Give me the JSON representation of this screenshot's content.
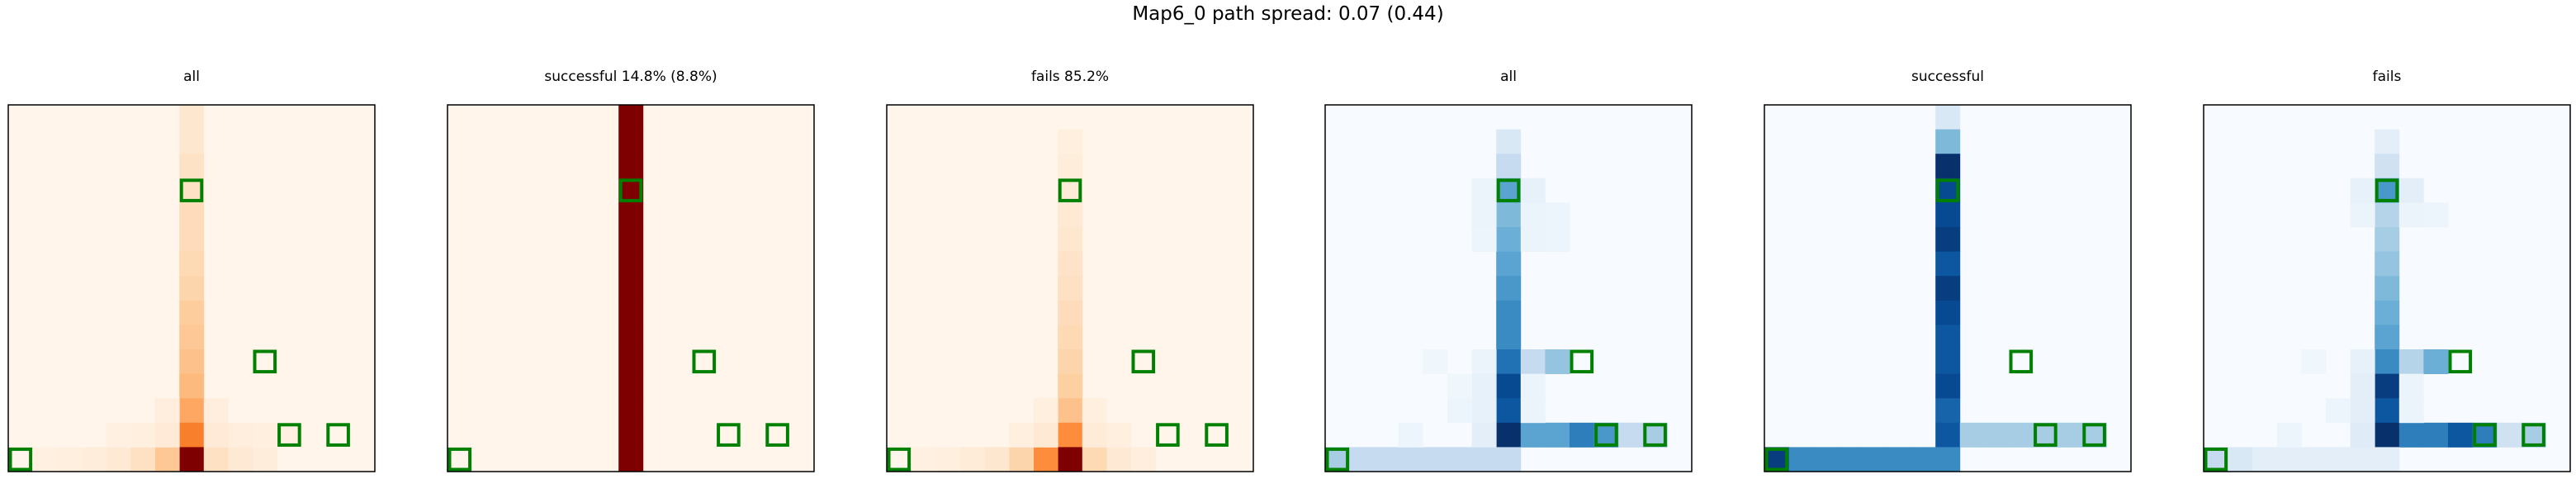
{
  "figure": {
    "title": "Map6_0 path spread: 0.07 (0.44)"
  },
  "chart_data": [
    {
      "type": "heatmap",
      "title": "all",
      "colormap": "Oranges",
      "grid_size": [
        15,
        15
      ],
      "cells": [
        {
          "col": 7,
          "row": 0,
          "value": 0.12
        },
        {
          "col": 7,
          "row": 1,
          "value": 0.12
        },
        {
          "col": 7,
          "row": 2,
          "value": 0.15
        },
        {
          "col": 7,
          "row": 3,
          "value": 0.15
        },
        {
          "col": 7,
          "row": 4,
          "value": 0.18
        },
        {
          "col": 7,
          "row": 5,
          "value": 0.18
        },
        {
          "col": 7,
          "row": 6,
          "value": 0.2
        },
        {
          "col": 7,
          "row": 7,
          "value": 0.22
        },
        {
          "col": 7,
          "row": 8,
          "value": 0.26
        },
        {
          "col": 7,
          "row": 9,
          "value": 0.28
        },
        {
          "col": 7,
          "row": 10,
          "value": 0.3
        },
        {
          "col": 7,
          "row": 11,
          "value": 0.33
        },
        {
          "col": 7,
          "row": 12,
          "value": 0.4
        },
        {
          "col": 7,
          "row": 13,
          "value": 0.55
        },
        {
          "col": 7,
          "row": 14,
          "value": 1.0
        },
        {
          "col": 6,
          "row": 14,
          "value": 0.28
        },
        {
          "col": 5,
          "row": 14,
          "value": 0.16
        },
        {
          "col": 4,
          "row": 14,
          "value": 0.1
        },
        {
          "col": 3,
          "row": 14,
          "value": 0.07
        },
        {
          "col": 2,
          "row": 14,
          "value": 0.05
        },
        {
          "col": 1,
          "row": 14,
          "value": 0.04
        },
        {
          "col": 8,
          "row": 14,
          "value": 0.16
        },
        {
          "col": 9,
          "row": 14,
          "value": 0.1
        },
        {
          "col": 10,
          "row": 14,
          "value": 0.07
        },
        {
          "col": 6,
          "row": 13,
          "value": 0.09
        },
        {
          "col": 8,
          "row": 13,
          "value": 0.09
        },
        {
          "col": 9,
          "row": 13,
          "value": 0.06
        },
        {
          "col": 6,
          "row": 12,
          "value": 0.06
        },
        {
          "col": 8,
          "row": 12,
          "value": 0.06
        },
        {
          "col": 5,
          "row": 13,
          "value": 0.05
        },
        {
          "col": 10,
          "row": 13,
          "value": 0.05
        },
        {
          "col": 11,
          "row": 13,
          "value": 0.04
        },
        {
          "col": 4,
          "row": 13,
          "value": 0.04
        }
      ],
      "markers": [
        {
          "col": 7,
          "row": 3
        },
        {
          "col": 10,
          "row": 10
        },
        {
          "col": 11,
          "row": 13
        },
        {
          "col": 13,
          "row": 13
        },
        {
          "col": 0,
          "row": 14
        }
      ]
    },
    {
      "type": "heatmap",
      "title": "successful 14.8% (8.8%)",
      "colormap": "Oranges",
      "grid_size": [
        15,
        15
      ],
      "cells": [
        {
          "col": 7,
          "row": 0,
          "value": 1.0
        },
        {
          "col": 7,
          "row": 1,
          "value": 1.0
        },
        {
          "col": 7,
          "row": 2,
          "value": 1.0
        },
        {
          "col": 7,
          "row": 3,
          "value": 1.0
        },
        {
          "col": 7,
          "row": 4,
          "value": 1.0
        },
        {
          "col": 7,
          "row": 5,
          "value": 1.0
        },
        {
          "col": 7,
          "row": 6,
          "value": 1.0
        },
        {
          "col": 7,
          "row": 7,
          "value": 1.0
        },
        {
          "col": 7,
          "row": 8,
          "value": 1.0
        },
        {
          "col": 7,
          "row": 9,
          "value": 1.0
        },
        {
          "col": 7,
          "row": 10,
          "value": 1.0
        },
        {
          "col": 7,
          "row": 11,
          "value": 1.0
        },
        {
          "col": 7,
          "row": 12,
          "value": 1.0
        },
        {
          "col": 7,
          "row": 13,
          "value": 1.0
        },
        {
          "col": 7,
          "row": 14,
          "value": 1.0
        }
      ],
      "markers": [
        {
          "col": 7,
          "row": 3
        },
        {
          "col": 10,
          "row": 10
        },
        {
          "col": 11,
          "row": 13
        },
        {
          "col": 13,
          "row": 13
        },
        {
          "col": 0,
          "row": 14
        }
      ]
    },
    {
      "type": "heatmap",
      "title": "fails 85.2%",
      "colormap": "Oranges",
      "grid_size": [
        15,
        15
      ],
      "cells": [
        {
          "col": 7,
          "row": 1,
          "value": 0.05
        },
        {
          "col": 7,
          "row": 2,
          "value": 0.07
        },
        {
          "col": 7,
          "row": 3,
          "value": 0.08
        },
        {
          "col": 7,
          "row": 4,
          "value": 0.1
        },
        {
          "col": 7,
          "row": 5,
          "value": 0.12
        },
        {
          "col": 7,
          "row": 6,
          "value": 0.14
        },
        {
          "col": 7,
          "row": 7,
          "value": 0.16
        },
        {
          "col": 7,
          "row": 8,
          "value": 0.18
        },
        {
          "col": 7,
          "row": 9,
          "value": 0.2
        },
        {
          "col": 7,
          "row": 10,
          "value": 0.22
        },
        {
          "col": 7,
          "row": 11,
          "value": 0.25
        },
        {
          "col": 7,
          "row": 12,
          "value": 0.3
        },
        {
          "col": 7,
          "row": 13,
          "value": 0.5
        },
        {
          "col": 7,
          "row": 14,
          "value": 1.0
        },
        {
          "col": 6,
          "row": 14,
          "value": 0.5
        },
        {
          "col": 5,
          "row": 14,
          "value": 0.22
        },
        {
          "col": 4,
          "row": 14,
          "value": 0.12
        },
        {
          "col": 3,
          "row": 14,
          "value": 0.08
        },
        {
          "col": 2,
          "row": 14,
          "value": 0.05
        },
        {
          "col": 1,
          "row": 14,
          "value": 0.04
        },
        {
          "col": 8,
          "row": 14,
          "value": 0.2
        },
        {
          "col": 9,
          "row": 14,
          "value": 0.1
        },
        {
          "col": 10,
          "row": 14,
          "value": 0.06
        },
        {
          "col": 6,
          "row": 13,
          "value": 0.1
        },
        {
          "col": 8,
          "row": 13,
          "value": 0.08
        },
        {
          "col": 6,
          "row": 12,
          "value": 0.05
        },
        {
          "col": 8,
          "row": 12,
          "value": 0.05
        },
        {
          "col": 5,
          "row": 13,
          "value": 0.05
        },
        {
          "col": 9,
          "row": 13,
          "value": 0.05
        }
      ],
      "markers": [
        {
          "col": 7,
          "row": 3
        },
        {
          "col": 10,
          "row": 10
        },
        {
          "col": 11,
          "row": 13
        },
        {
          "col": 13,
          "row": 13
        },
        {
          "col": 0,
          "row": 14
        }
      ]
    },
    {
      "type": "heatmap",
      "title": "all",
      "colormap": "Blues",
      "grid_size": [
        15,
        15
      ],
      "cells": [
        {
          "col": 7,
          "row": 1,
          "value": 0.15
        },
        {
          "col": 7,
          "row": 2,
          "value": 0.25
        },
        {
          "col": 7,
          "row": 3,
          "value": 0.55
        },
        {
          "col": 7,
          "row": 4,
          "value": 0.45
        },
        {
          "col": 7,
          "row": 5,
          "value": 0.5
        },
        {
          "col": 7,
          "row": 6,
          "value": 0.55
        },
        {
          "col": 7,
          "row": 7,
          "value": 0.6
        },
        {
          "col": 7,
          "row": 8,
          "value": 0.65
        },
        {
          "col": 7,
          "row": 9,
          "value": 0.65
        },
        {
          "col": 7,
          "row": 10,
          "value": 0.75
        },
        {
          "col": 7,
          "row": 11,
          "value": 0.9
        },
        {
          "col": 7,
          "row": 12,
          "value": 0.85
        },
        {
          "col": 7,
          "row": 13,
          "value": 1.0
        },
        {
          "col": 8,
          "row": 10,
          "value": 0.25
        },
        {
          "col": 9,
          "row": 10,
          "value": 0.4
        },
        {
          "col": 8,
          "row": 13,
          "value": 0.55
        },
        {
          "col": 9,
          "row": 13,
          "value": 0.55
        },
        {
          "col": 10,
          "row": 13,
          "value": 0.7
        },
        {
          "col": 11,
          "row": 13,
          "value": 0.6
        },
        {
          "col": 12,
          "row": 13,
          "value": 0.25
        },
        {
          "col": 13,
          "row": 13,
          "value": 0.35
        },
        {
          "col": 0,
          "row": 14,
          "value": 0.35
        },
        {
          "col": 1,
          "row": 14,
          "value": 0.25
        },
        {
          "col": 2,
          "row": 14,
          "value": 0.25
        },
        {
          "col": 3,
          "row": 14,
          "value": 0.25
        },
        {
          "col": 4,
          "row": 14,
          "value": 0.25
        },
        {
          "col": 5,
          "row": 14,
          "value": 0.25
        },
        {
          "col": 6,
          "row": 14,
          "value": 0.25
        },
        {
          "col": 7,
          "row": 14,
          "value": 0.25
        },
        {
          "col": 6,
          "row": 3,
          "value": 0.06
        },
        {
          "col": 8,
          "row": 3,
          "value": 0.08
        },
        {
          "col": 6,
          "row": 4,
          "value": 0.06
        },
        {
          "col": 8,
          "row": 4,
          "value": 0.06
        },
        {
          "col": 9,
          "row": 4,
          "value": 0.05
        },
        {
          "col": 6,
          "row": 5,
          "value": 0.05
        },
        {
          "col": 8,
          "row": 5,
          "value": 0.06
        },
        {
          "col": 9,
          "row": 5,
          "value": 0.05
        },
        {
          "col": 6,
          "row": 10,
          "value": 0.06
        },
        {
          "col": 6,
          "row": 11,
          "value": 0.08
        },
        {
          "col": 6,
          "row": 12,
          "value": 0.08
        },
        {
          "col": 6,
          "row": 13,
          "value": 0.1
        },
        {
          "col": 8,
          "row": 11,
          "value": 0.06
        },
        {
          "col": 8,
          "row": 12,
          "value": 0.06
        },
        {
          "col": 5,
          "row": 12,
          "value": 0.05
        },
        {
          "col": 5,
          "row": 11,
          "value": 0.04
        },
        {
          "col": 4,
          "row": 10,
          "value": 0.04
        },
        {
          "col": 3,
          "row": 13,
          "value": 0.05
        }
      ],
      "markers": [
        {
          "col": 7,
          "row": 3
        },
        {
          "col": 10,
          "row": 10
        },
        {
          "col": 11,
          "row": 13
        },
        {
          "col": 13,
          "row": 13
        },
        {
          "col": 0,
          "row": 14
        }
      ]
    },
    {
      "type": "heatmap",
      "title": "successful",
      "colormap": "Blues",
      "grid_size": [
        15,
        15
      ],
      "cells": [
        {
          "col": 7,
          "row": 0,
          "value": 0.15
        },
        {
          "col": 7,
          "row": 1,
          "value": 0.45
        },
        {
          "col": 7,
          "row": 2,
          "value": 1.0
        },
        {
          "col": 7,
          "row": 3,
          "value": 0.9
        },
        {
          "col": 7,
          "row": 4,
          "value": 0.9
        },
        {
          "col": 7,
          "row": 5,
          "value": 0.95
        },
        {
          "col": 7,
          "row": 6,
          "value": 0.85
        },
        {
          "col": 7,
          "row": 7,
          "value": 0.95
        },
        {
          "col": 7,
          "row": 8,
          "value": 0.9
        },
        {
          "col": 7,
          "row": 9,
          "value": 0.85
        },
        {
          "col": 7,
          "row": 10,
          "value": 0.85
        },
        {
          "col": 7,
          "row": 11,
          "value": 0.9
        },
        {
          "col": 7,
          "row": 12,
          "value": 0.8
        },
        {
          "col": 7,
          "row": 13,
          "value": 0.85
        },
        {
          "col": 8,
          "row": 13,
          "value": 0.35
        },
        {
          "col": 9,
          "row": 13,
          "value": 0.35
        },
        {
          "col": 10,
          "row": 13,
          "value": 0.35
        },
        {
          "col": 11,
          "row": 13,
          "value": 0.35
        },
        {
          "col": 12,
          "row": 13,
          "value": 0.35
        },
        {
          "col": 13,
          "row": 13,
          "value": 0.35
        },
        {
          "col": 0,
          "row": 14,
          "value": 0.95
        },
        {
          "col": 1,
          "row": 14,
          "value": 0.65
        },
        {
          "col": 2,
          "row": 14,
          "value": 0.65
        },
        {
          "col": 3,
          "row": 14,
          "value": 0.65
        },
        {
          "col": 4,
          "row": 14,
          "value": 0.65
        },
        {
          "col": 5,
          "row": 14,
          "value": 0.65
        },
        {
          "col": 6,
          "row": 14,
          "value": 0.65
        },
        {
          "col": 7,
          "row": 14,
          "value": 0.65
        }
      ],
      "markers": [
        {
          "col": 7,
          "row": 3
        },
        {
          "col": 10,
          "row": 10
        },
        {
          "col": 11,
          "row": 13
        },
        {
          "col": 13,
          "row": 13
        },
        {
          "col": 0,
          "row": 14
        }
      ]
    },
    {
      "type": "heatmap",
      "title": "fails",
      "colormap": "Blues",
      "grid_size": [
        15,
        15
      ],
      "cells": [
        {
          "col": 7,
          "row": 1,
          "value": 0.1
        },
        {
          "col": 7,
          "row": 2,
          "value": 0.2
        },
        {
          "col": 7,
          "row": 3,
          "value": 0.6
        },
        {
          "col": 7,
          "row": 4,
          "value": 0.3
        },
        {
          "col": 7,
          "row": 5,
          "value": 0.35
        },
        {
          "col": 7,
          "row": 6,
          "value": 0.4
        },
        {
          "col": 7,
          "row": 7,
          "value": 0.45
        },
        {
          "col": 7,
          "row": 8,
          "value": 0.5
        },
        {
          "col": 7,
          "row": 9,
          "value": 0.55
        },
        {
          "col": 7,
          "row": 10,
          "value": 0.65
        },
        {
          "col": 7,
          "row": 11,
          "value": 0.95
        },
        {
          "col": 7,
          "row": 12,
          "value": 0.85
        },
        {
          "col": 7,
          "row": 13,
          "value": 1.0
        },
        {
          "col": 8,
          "row": 10,
          "value": 0.3
        },
        {
          "col": 9,
          "row": 10,
          "value": 0.5
        },
        {
          "col": 8,
          "row": 13,
          "value": 0.7
        },
        {
          "col": 9,
          "row": 13,
          "value": 0.7
        },
        {
          "col": 10,
          "row": 13,
          "value": 0.85
        },
        {
          "col": 11,
          "row": 13,
          "value": 0.7
        },
        {
          "col": 12,
          "row": 13,
          "value": 0.2
        },
        {
          "col": 13,
          "row": 13,
          "value": 0.35
        },
        {
          "col": 0,
          "row": 14,
          "value": 0.25
        },
        {
          "col": 1,
          "row": 14,
          "value": 0.15
        },
        {
          "col": 2,
          "row": 14,
          "value": 0.1
        },
        {
          "col": 3,
          "row": 14,
          "value": 0.1
        },
        {
          "col": 4,
          "row": 14,
          "value": 0.1
        },
        {
          "col": 5,
          "row": 14,
          "value": 0.1
        },
        {
          "col": 6,
          "row": 14,
          "value": 0.1
        },
        {
          "col": 7,
          "row": 14,
          "value": 0.1
        },
        {
          "col": 6,
          "row": 3,
          "value": 0.08
        },
        {
          "col": 8,
          "row": 3,
          "value": 0.1
        },
        {
          "col": 6,
          "row": 4,
          "value": 0.06
        },
        {
          "col": 8,
          "row": 4,
          "value": 0.06
        },
        {
          "col": 9,
          "row": 4,
          "value": 0.05
        },
        {
          "col": 6,
          "row": 10,
          "value": 0.08
        },
        {
          "col": 6,
          "row": 11,
          "value": 0.1
        },
        {
          "col": 6,
          "row": 12,
          "value": 0.1
        },
        {
          "col": 6,
          "row": 13,
          "value": 0.12
        },
        {
          "col": 8,
          "row": 11,
          "value": 0.06
        },
        {
          "col": 8,
          "row": 12,
          "value": 0.06
        },
        {
          "col": 5,
          "row": 12,
          "value": 0.05
        },
        {
          "col": 4,
          "row": 10,
          "value": 0.04
        },
        {
          "col": 3,
          "row": 13,
          "value": 0.05
        }
      ],
      "markers": [
        {
          "col": 7,
          "row": 3
        },
        {
          "col": 10,
          "row": 10
        },
        {
          "col": 11,
          "row": 13
        },
        {
          "col": 13,
          "row": 13
        },
        {
          "col": 0,
          "row": 14
        }
      ]
    }
  ]
}
